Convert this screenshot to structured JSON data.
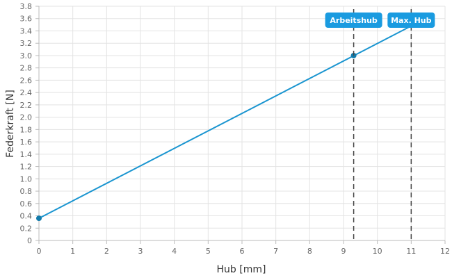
{
  "chart_data": {
    "type": "line",
    "xlabel": "Hub [mm]",
    "ylabel": "Federkraft [N]",
    "xlim": [
      0,
      12
    ],
    "ylim": [
      0,
      3.8
    ],
    "xticks": [
      "0",
      "1",
      "2",
      "3",
      "4",
      "5",
      "6",
      "7",
      "8",
      "9",
      "10",
      "11",
      "12"
    ],
    "yticks": [
      "0",
      "0.2",
      "0.4",
      "0.6",
      "0.8",
      "1.0",
      "1.2",
      "1.4",
      "1.6",
      "1.8",
      "2.0",
      "2.2",
      "2.4",
      "2.6",
      "2.8",
      "3.0",
      "3.2",
      "3.4",
      "3.6",
      "3.8"
    ],
    "grid": true,
    "line_color": "#1a95d0",
    "series": [
      {
        "x": [
          0,
          11
        ],
        "y": [
          0.36,
          3.48
        ]
      }
    ],
    "points": [
      {
        "x": 0,
        "y": 0.36
      },
      {
        "x": 9.3,
        "y": 3.0
      }
    ],
    "markers": [
      {
        "x": 9.3,
        "label": "Arbeitshub",
        "color": "#1a9be0"
      },
      {
        "x": 11,
        "label": "Max. Hub",
        "color": "#1a9be0"
      }
    ]
  }
}
